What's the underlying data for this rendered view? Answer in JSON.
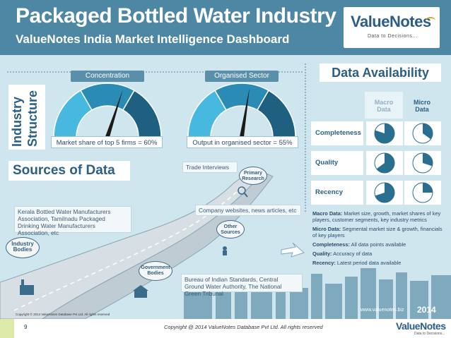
{
  "header": {
    "title": "Packaged Bottled Water Industry",
    "subtitle": "ValueNotes India Market Intelligence Dashboard",
    "logo_name": "ValueNotes",
    "logo_tagline": "Data to Decisions...",
    "brand_color": "#4d87a3"
  },
  "industry_structure": {
    "label_line1": "Industry",
    "label_line2": "Structure",
    "gauges": [
      {
        "title": "Concentration",
        "caption": "Market share of top 5 firms = 60%",
        "value_percent": 60
      },
      {
        "title": "Organised Sector",
        "caption": "Output in organised sector = 55%",
        "value_percent": 55
      }
    ]
  },
  "data_availability": {
    "title": "Data Availability",
    "col_macro": "Macro\nData",
    "col_micro": "Micro\nData",
    "rows": [
      {
        "label": "Completeness",
        "macro_fraction": 0.8,
        "micro_fraction": 0.35
      },
      {
        "label": "Quality",
        "macro_fraction": 0.65,
        "micro_fraction": 0.3
      },
      {
        "label": "Recency",
        "macro_fraction": 0.7,
        "micro_fraction": 0.25
      }
    ],
    "definitions": [
      {
        "term": "Macro Data:",
        "text": " Market size, growth, market shares of key players, customer segments, key industry metrics"
      },
      {
        "term": "Micro Data:",
        "text": " Segmental market size & growth, financials of key players"
      },
      {
        "term": "Completeness:",
        "text": " All data points available"
      },
      {
        "term": "Quality:",
        "text": " Accuracy of data"
      },
      {
        "term": "Recency:",
        "text": " Latest period data available"
      }
    ]
  },
  "sources": {
    "title": "Sources of Data",
    "trade_interviews": "Trade Interviews",
    "primary_research": "Primary\nResearch",
    "company_websites": "Company websites, news articles, etc",
    "other_sources": "Other\nSources",
    "associations": "Kerala Bottled Water Manufacturers Association, Tamilnadu Packaged Drinking Water Manufacturers Association, etc",
    "industry_bodies": "Industry\nBodies",
    "government_bodies": "Government\nBodies",
    "bureaus": "Bureau of Indian Standards, Central Ground Water Authority, The National Green Tribunal"
  },
  "bottom": {
    "small_copyright": "Copyright © 2014 ValueNotes Database Pvt Ltd. All rights reserved",
    "website": "www.valuenotes.biz",
    "year": "2014"
  },
  "footer": {
    "page_number": "9",
    "copyright": "Copyright @ 2014 ValueNotes Database Pvt Ltd. All rights reserved",
    "logo_name": "ValueNotes",
    "logo_tagline": "Data to Decisions..."
  }
}
